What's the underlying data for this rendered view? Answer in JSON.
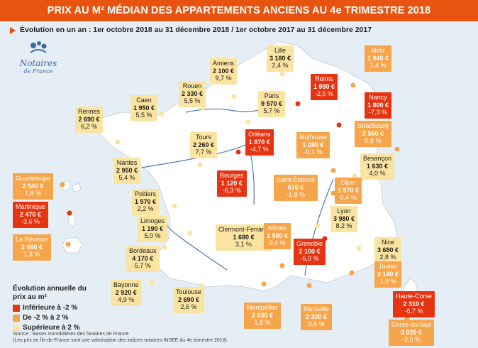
{
  "header": {
    "title": "PRIX AU M² MÉDIAN DES APPARTEMENTS ANCIENS AU 4e TRIMESTRE 2018",
    "subtitle": "Évolution en un an : 1er octobre 2018 au 31 décembre 2018 / 1er octobre 2017 au 31 décembre 2017"
  },
  "logo": {
    "name": "Notaires",
    "sub": "de France"
  },
  "colors": {
    "up": "#fbe4a1",
    "mid": "#f7a54a",
    "down": "#e63312",
    "land": "#ffffff",
    "sea": "#e5eef5",
    "accent": "#e8540f"
  },
  "cities": [
    {
      "id": "lille",
      "name": "Lille",
      "price": "3 180 €",
      "change": "2,4 %",
      "cat": "up"
    },
    {
      "id": "amiens",
      "name": "Amiens",
      "price": "2 100 €",
      "change": "9,7 %",
      "cat": "up"
    },
    {
      "id": "metz",
      "name": "Metz",
      "price": "1 840 €",
      "change": "1,4 %",
      "cat": "mid"
    },
    {
      "id": "reims",
      "name": "Reims",
      "price": "1 980 €",
      "change": "-2,5 %",
      "cat": "down"
    },
    {
      "id": "rouen",
      "name": "Rouen",
      "price": "2 330 €",
      "change": "5,5 %",
      "cat": "up"
    },
    {
      "id": "caen",
      "name": "Caen",
      "price": "1 950 €",
      "change": "5,5 %",
      "cat": "up"
    },
    {
      "id": "paris",
      "name": "Paris",
      "price": "9 570 €",
      "change": "5,7 %",
      "cat": "up"
    },
    {
      "id": "nancy",
      "name": "Nancy",
      "price": "1 800 €",
      "change": "-7,3 %",
      "cat": "down"
    },
    {
      "id": "rennes",
      "name": "Rennes",
      "price": "2 690 €",
      "change": "6,2 %",
      "cat": "up"
    },
    {
      "id": "strasbourg",
      "name": "Strasbourg",
      "price": "2 560 €",
      "change": "0,8 %",
      "cat": "mid"
    },
    {
      "id": "orleans",
      "name": "Orléans",
      "price": "1 870 €",
      "change": "-4,7 %",
      "cat": "down"
    },
    {
      "id": "tours",
      "name": "Tours",
      "price": "2 260 €",
      "change": "7,7 %",
      "cat": "up"
    },
    {
      "id": "mulhouse",
      "name": "Mulhouse",
      "price": "1 080 €",
      "change": "-0,1 %",
      "cat": "mid"
    },
    {
      "id": "besancon",
      "name": "Besançon",
      "price": "1 630 €",
      "change": "4,0 %",
      "cat": "up"
    },
    {
      "id": "nantes",
      "name": "Nantes",
      "price": "2 950 €",
      "change": "5,4 %",
      "cat": "up"
    },
    {
      "id": "bourges",
      "name": "Bourges",
      "price": "1 120 €",
      "change": "-6,3 %",
      "cat": "down"
    },
    {
      "id": "saint-etienne",
      "name": "Saint-Étienne",
      "price": "870 €",
      "change": "-1,8 %",
      "cat": "mid"
    },
    {
      "id": "dijon",
      "name": "Dijon",
      "price": "1 970 €",
      "change": "0,4 %",
      "cat": "mid"
    },
    {
      "id": "guadeloupe",
      "name": "Guadeloupe",
      "price": "2 540 €",
      "change": "1,8 %",
      "cat": "mid"
    },
    {
      "id": "poitiers",
      "name": "Poitiers",
      "price": "1 570 €",
      "change": "2,2 %",
      "cat": "up"
    },
    {
      "id": "martinique",
      "name": "Martinique",
      "price": "2 470 €",
      "change": "-3,6 %",
      "cat": "down"
    },
    {
      "id": "limoges",
      "name": "Limoges",
      "price": "1 190 €",
      "change": "5,0 %",
      "cat": "up"
    },
    {
      "id": "lyon",
      "name": "Lyon",
      "price": "3 980 €",
      "change": "8,2 %",
      "cat": "up"
    },
    {
      "id": "clermont",
      "name": "Clermont-Ferrand",
      "price": "1 680 €",
      "change": "3,1 %",
      "cat": "up"
    },
    {
      "id": "nimes",
      "name": "Nîmes",
      "price": "1 580 €",
      "change": "0,4 %",
      "cat": "mid"
    },
    {
      "id": "reunion",
      "name": "La Réunion",
      "price": "2 080 €",
      "change": "1,8 %",
      "cat": "mid"
    },
    {
      "id": "grenoble",
      "name": "Grenoble",
      "price": "2 100 €",
      "change": "-5,0 %",
      "cat": "down"
    },
    {
      "id": "nice",
      "name": "Nice",
      "price": "3 680 €",
      "change": "2,8 %",
      "cat": "up"
    },
    {
      "id": "bordeaux",
      "name": "Bordeaux",
      "price": "4 170 €",
      "change": "5,7 %",
      "cat": "up"
    },
    {
      "id": "toulon",
      "name": "Toulon",
      "price": "2 140 €",
      "change": "1,9 %",
      "cat": "mid"
    },
    {
      "id": "bayonne",
      "name": "Bayonne",
      "price": "2 920 €",
      "change": "4,9 %",
      "cat": "up"
    },
    {
      "id": "toulouse",
      "name": "Toulouse",
      "price": "2 690 €",
      "change": "2,6 %",
      "cat": "up"
    },
    {
      "id": "haute-corse",
      "name": "Haute-Corse",
      "price": "2 310 €",
      "change": "-6,7 %",
      "cat": "down"
    },
    {
      "id": "montpellier",
      "name": "Montpellier",
      "price": "2 630 €",
      "change": "1,8 %",
      "cat": "mid"
    },
    {
      "id": "marseille",
      "name": "Marseille",
      "price": "2 300 €",
      "change": "0,4 %",
      "cat": "mid"
    },
    {
      "id": "corse-du-sud",
      "name": "Corse-du-Sud",
      "price": "3 020 €",
      "change": "-2,0 %",
      "cat": "mid"
    }
  ],
  "legend": {
    "title": "Évolution annuelle du prix au m²",
    "items": [
      {
        "label": "Inférieure à -2 %",
        "cat": "down"
      },
      {
        "label": "De -2 % à 2 %",
        "cat": "mid"
      },
      {
        "label": "Supérieure à 2 %",
        "cat": "up"
      }
    ]
  },
  "source": {
    "line1": "Source : Bases immobilières des Notaires de France",
    "line2": "(Les prix en Île-de-France sont une valorisation des indices notaires-INSEE du 4e trimestre 2018)"
  }
}
